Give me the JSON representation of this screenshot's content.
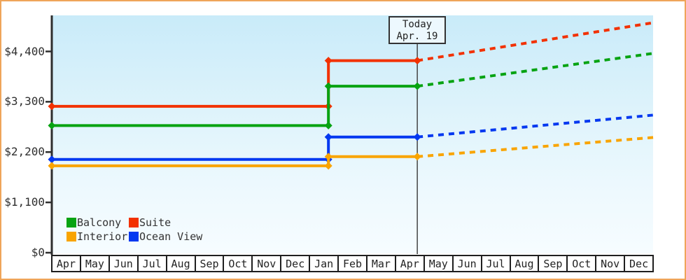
{
  "window": {
    "title": "Cruise cabin price history chart"
  },
  "colors": {
    "frame_border": "#efa55a",
    "axis": "#2e2e2e",
    "today_line": "#444444",
    "suite": "#f23100",
    "balcony": "#07a312",
    "ocean_view": "#0338f0",
    "interior": "#f9a400"
  },
  "today": {
    "title": "Today",
    "date": "Apr. 19"
  },
  "legend": {
    "items": [
      {
        "label": "Balcony",
        "color": "#07a312"
      },
      {
        "label": "Suite",
        "color": "#f23100"
      },
      {
        "label": "Interior",
        "color": "#f9a400"
      },
      {
        "label": "Ocean View",
        "color": "#0338f0"
      }
    ]
  },
  "chart_data": {
    "type": "line",
    "title": "",
    "xlabel": "",
    "ylabel": "",
    "grid": false,
    "legend_position": "bottom-left inside plot",
    "x_axis": {
      "months": [
        "Apr",
        "May",
        "Jun",
        "Jul",
        "Aug",
        "Sep",
        "Oct",
        "Nov",
        "Dec",
        "Jan",
        "Feb",
        "Mar",
        "Apr",
        "May",
        "Jun",
        "Jul",
        "Aug",
        "Sep",
        "Oct",
        "Nov",
        "Dec"
      ],
      "num_cells": 21
    },
    "y_axis": {
      "ticks": [
        {
          "label": "$4,400",
          "value": 4400
        },
        {
          "label": "$3,300",
          "value": 3300
        },
        {
          "label": "$2,200",
          "value": 2200
        },
        {
          "label": "$1,100",
          "value": 1100
        },
        {
          "label": "$0",
          "value": 0
        }
      ],
      "range": [
        0,
        5190
      ]
    },
    "price_change_x_months": 9.65,
    "today_marker": {
      "label": "Today",
      "date": "Apr. 19",
      "x_months": 12.75
    },
    "projection_end_x_months": 21,
    "series": [
      {
        "name": "Suite",
        "color": "#f23100",
        "price_before": 3200,
        "price_after": 4200,
        "projected_price_end": 5030
      },
      {
        "name": "Balcony",
        "color": "#07a312",
        "price_before": 2780,
        "price_after": 3640,
        "projected_price_end": 4360
      },
      {
        "name": "Ocean View",
        "color": "#0338f0",
        "price_before": 2040,
        "price_after": 2530,
        "projected_price_end": 3010
      },
      {
        "name": "Interior",
        "color": "#f9a400",
        "price_before": 1900,
        "price_after": 2100,
        "projected_price_end": 2520
      }
    ],
    "notes": "Solid lines = historical price (flat, one step up in mid-January). Diamond markers at series start, step, and today. Dotted lines = rising price projection from today (Apr. 19) to end of next December."
  }
}
